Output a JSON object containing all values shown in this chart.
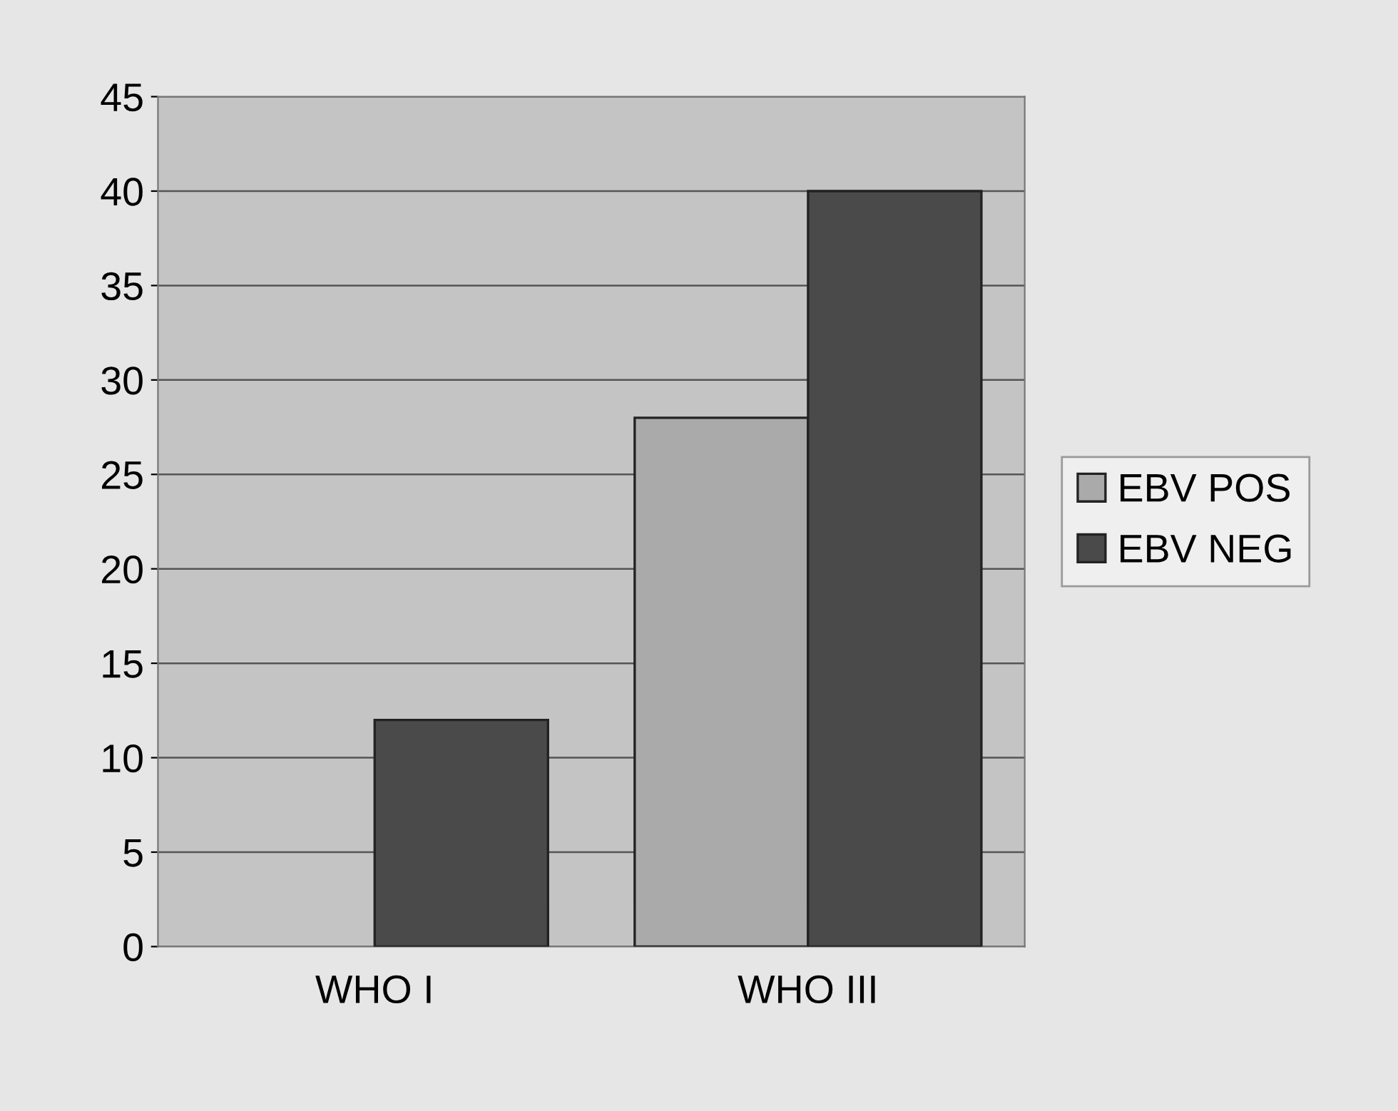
{
  "chart_data": {
    "type": "bar",
    "categories": [
      "WHO I",
      "WHO III"
    ],
    "series": [
      {
        "name": "EBV POS",
        "color": "#aaaaaa",
        "values": [
          null,
          28
        ]
      },
      {
        "name": "EBV NEG",
        "color": "#4a4a4a",
        "values": [
          12,
          40
        ]
      }
    ],
    "ylim": [
      0,
      45
    ],
    "yticks": [
      0,
      5,
      10,
      15,
      20,
      25,
      30,
      35,
      40,
      45
    ],
    "grid": "y",
    "legend": "right"
  }
}
